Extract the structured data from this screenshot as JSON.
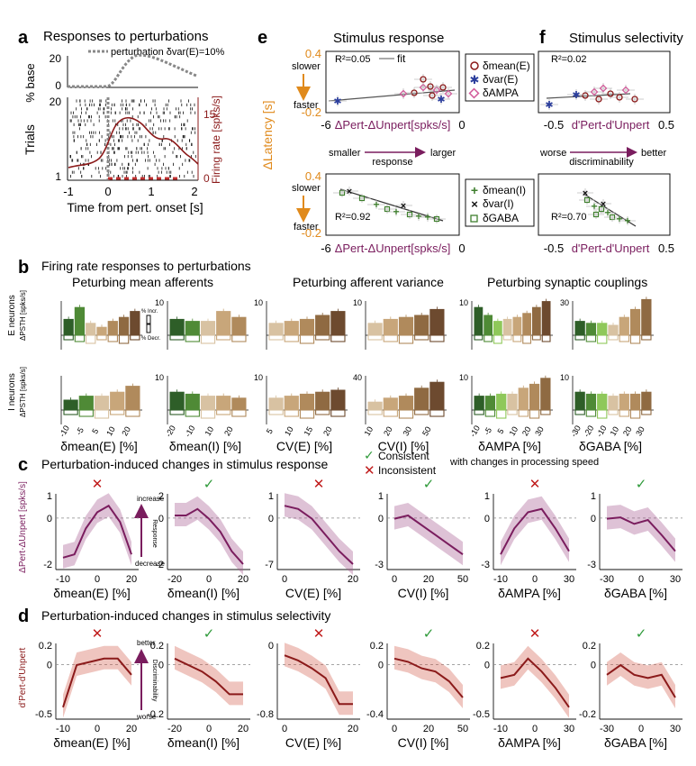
{
  "colors": {
    "maroon": "#8b1a1a",
    "purple": "#7a1d5e",
    "orange": "#e08a1c",
    "grayfit": "#555555",
    "green": "#3f7f2e",
    "greenLight": "#8fc85a",
    "brown": "#6d4a2f",
    "tan": "#c8a67a",
    "checkGreen": "#2f9a3a",
    "crossRed": "#c01b1b",
    "pink": "#d25a9a",
    "blueStar": "#2a3d9c"
  },
  "panel_a": {
    "letter": "a",
    "title": "Responses to perturbations",
    "ylabel_top": "% base",
    "legend": "perturbation δvar(E)=10%",
    "ytick_top": [
      "20",
      "0"
    ],
    "ylabel_raster": "Trials",
    "ytick_raster": [
      "20",
      "1"
    ],
    "ylabel_right": "Firing rate [spks/s]",
    "ytick_right": [
      "15",
      "0"
    ],
    "xticks": [
      "-1",
      "0",
      "1",
      "2"
    ],
    "xlabel": "Time from pert. onset [s]"
  },
  "panel_e": {
    "letter": "e",
    "title": "Stimulus response",
    "yaxis_label": "ΔLatency [s]",
    "slower": "slower",
    "faster": "faster",
    "ytick_top": "0.4",
    "ytick_bottom": "-0.2",
    "xtick_left": "-6",
    "xtick_right": "0",
    "xlabel": "ΔPert-ΔUnpert[spks/s]",
    "r2_top": "R²=0.05",
    "fit_label": "fit",
    "r2_bottom": "R²=0.92",
    "legend_top": [
      "δmean(E)",
      "δvar(E)",
      "δAMPA"
    ],
    "legend_bottom": [
      "δmean(I)",
      "δvar(I)",
      "δGABA"
    ],
    "arrow_left": "smaller",
    "arrow_mid": "response",
    "arrow_right": "larger"
  },
  "panel_f": {
    "letter": "f",
    "title": "Stimulus selectivity",
    "r2_top": "R²=0.02",
    "r2_bottom": "R²=0.70",
    "xtick_left": "-0.5",
    "xtick_right": "0.5",
    "xlabel": "d'Pert-d'Unpert",
    "arrow_left": "worse",
    "arrow_mid": "discriminability",
    "arrow_right": "better"
  },
  "panel_b": {
    "letter": "b",
    "title": "Firing rate responses to perturbations",
    "group_titles": [
      "Peturbing mean afferents",
      "Peturbing afferent variance",
      "Peturbing synaptic couplings"
    ],
    "row_labels": [
      "E neurons",
      "I neurons"
    ],
    "row_units": "ΔPSTH [spks/s]",
    "legend_incr": "% Incr.",
    "legend_decr": "% Decr.",
    "subplots": [
      {
        "xlabel": "δmean(E) [%]",
        "ticks": [
          "-10",
          "-5",
          "5",
          "10",
          "20"
        ],
        "ymaxE": "",
        "ymaxI": ""
      },
      {
        "xlabel": "δmean(I) [%]",
        "ticks": [
          "-20",
          "-10",
          "10",
          "20"
        ],
        "ymaxE": "10",
        "ymaxI": "10"
      },
      {
        "xlabel": "CV(E) [%]",
        "ticks": [
          "5",
          "10",
          "15",
          "20"
        ],
        "ymaxE": "10",
        "ymaxI": "10"
      },
      {
        "xlabel": "CV(I) [%]",
        "ticks": [
          "10",
          "20",
          "30",
          "50"
        ],
        "ymaxE": "10",
        "ymaxI": "40"
      },
      {
        "xlabel": "δAMPA [%]",
        "ticks": [
          "-10",
          "-5",
          "5",
          "10",
          "20",
          "30"
        ],
        "ymaxE": "10",
        "ymaxI": "10"
      },
      {
        "xlabel": "δGABA [%]",
        "ticks": [
          "-30",
          "-20",
          "-10",
          "10",
          "20",
          "30"
        ],
        "ymaxE": "30",
        "ymaxI": "10"
      }
    ]
  },
  "panel_c": {
    "letter": "c",
    "title": "Perturbation-induced changes in stimulus response",
    "legend_consistent": "Consistent",
    "legend_inconsistent": "Inconsistent",
    "legend_suffix": "with changes in processing speed",
    "ylabel": "ΔPert-ΔUnpert [spks/s]",
    "side_increase": "increase",
    "side_response": "Response",
    "side_decrease": "decrease",
    "subplots": [
      {
        "xlabel": "δmean(E) [%]",
        "mark": "cross",
        "yticks": [
          "1",
          "0",
          "-2"
        ],
        "xticks": [
          "-10",
          "0",
          "20"
        ]
      },
      {
        "xlabel": "δmean(I) [%]",
        "mark": "check",
        "yticks": [
          "2",
          "0",
          "-2"
        ],
        "xticks": [
          "-20",
          "0",
          "20"
        ]
      },
      {
        "xlabel": "CV(E) [%]",
        "mark": "cross",
        "yticks": [
          "1",
          "0",
          "-7"
        ],
        "xticks": [
          "0",
          "20"
        ]
      },
      {
        "xlabel": "CV(I) [%]",
        "mark": "check",
        "yticks": [
          "1",
          "0",
          "-3"
        ],
        "xticks": [
          "0",
          "20",
          "50"
        ]
      },
      {
        "xlabel": "δAMPA [%]",
        "mark": "cross",
        "yticks": [
          "1",
          "0",
          "-3"
        ],
        "xticks": [
          "-10",
          "0",
          "30"
        ]
      },
      {
        "xlabel": "δGABA [%]",
        "mark": "check",
        "yticks": [
          "1",
          "0",
          "-3"
        ],
        "xticks": [
          "-30",
          "0",
          "30"
        ]
      }
    ]
  },
  "panel_d": {
    "letter": "d",
    "title": "Perturbation-induced changes in stimulus selectivity",
    "ylabel": "d'Pert-d'Unpert",
    "side_better": "better",
    "side_discrim": "Discriminability",
    "side_worse": "worse",
    "subplots": [
      {
        "xlabel": "δmean(E) [%]",
        "mark": "cross",
        "yticks": [
          "0.2",
          "0",
          "-0.5"
        ],
        "xticks": [
          "-10",
          "0",
          "20"
        ]
      },
      {
        "xlabel": "δmean(I) [%]",
        "mark": "check",
        "yticks": [
          "0.2",
          "0",
          "-0.2"
        ],
        "xticks": [
          "-20",
          "0",
          "20"
        ]
      },
      {
        "xlabel": "CV(E) [%]",
        "mark": "cross",
        "yticks": [
          "0",
          "-0.8"
        ],
        "xticks": [
          "0",
          "20"
        ]
      },
      {
        "xlabel": "CV(I) [%]",
        "mark": "check",
        "yticks": [
          "0.2",
          "0",
          "-0.4"
        ],
        "xticks": [
          "0",
          "20",
          "50"
        ]
      },
      {
        "xlabel": "δAMPA [%]",
        "mark": "cross",
        "yticks": [
          "0.2",
          "0",
          "-0.5"
        ],
        "xticks": [
          "-10",
          "0",
          "30"
        ]
      },
      {
        "xlabel": "δGABA [%]",
        "mark": "check",
        "yticks": [
          "0.2",
          "0",
          "-0.2"
        ],
        "xticks": [
          "-30",
          "0",
          "30"
        ]
      }
    ]
  }
}
